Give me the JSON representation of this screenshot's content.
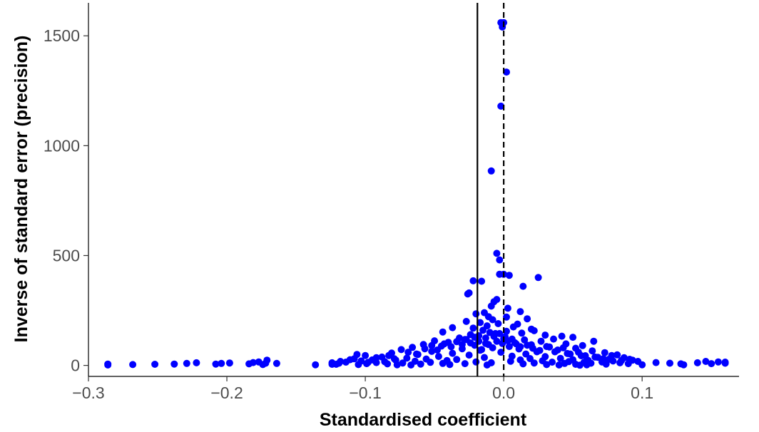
{
  "chart_data": {
    "type": "scatter",
    "title": "",
    "xlabel": "Standardised coefficient",
    "ylabel": "Inverse of standard error (precision)",
    "xlim": [
      -0.3,
      0.17
    ],
    "ylim": [
      -50,
      1650
    ],
    "x_ticks": [
      -0.3,
      -0.2,
      -0.1,
      0.0,
      0.1
    ],
    "x_tick_labels": [
      "−0.3",
      "−0.2",
      "−0.1",
      "0.0",
      "0.1"
    ],
    "y_ticks": [
      0,
      500,
      1000,
      1500
    ],
    "y_tick_labels": [
      "0",
      "500",
      "1000",
      "1500"
    ],
    "grid": false,
    "point_color": "#0000ff",
    "reference_lines": [
      {
        "x": -0.019,
        "style": "solid",
        "color": "#000000"
      },
      {
        "x": 0.0,
        "style": "dashed",
        "color": "#000000"
      }
    ],
    "points": [
      [
        0.0,
        1560
      ],
      [
        -0.002,
        1560
      ],
      [
        -0.001,
        1540
      ],
      [
        0.002,
        1335
      ],
      [
        -0.002,
        1180
      ],
      [
        -0.009,
        885
      ],
      [
        -0.005,
        510
      ],
      [
        -0.003,
        480
      ],
      [
        -0.003,
        415
      ],
      [
        0.0,
        415
      ],
      [
        0.004,
        410
      ],
      [
        0.025,
        400
      ],
      [
        -0.022,
        385
      ],
      [
        -0.016,
        383
      ],
      [
        0.014,
        360
      ],
      [
        -0.025,
        330
      ],
      [
        -0.026,
        325
      ],
      [
        -0.005,
        300
      ],
      [
        -0.007,
        290
      ],
      [
        -0.009,
        270
      ],
      [
        0.003,
        260
      ],
      [
        -0.014,
        240
      ],
      [
        0.012,
        245
      ],
      [
        -0.02,
        235
      ],
      [
        -0.011,
        222
      ],
      [
        0.002,
        220
      ],
      [
        0.017,
        212
      ],
      [
        -0.008,
        208
      ],
      [
        -0.027,
        200
      ],
      [
        -0.017,
        195
      ],
      [
        -0.004,
        190
      ],
      [
        0.01,
        188
      ],
      [
        -0.012,
        180
      ],
      [
        0.007,
        175
      ],
      [
        -0.037,
        172
      ],
      [
        -0.022,
        170
      ],
      [
        0.02,
        165
      ],
      [
        -0.015,
        160
      ],
      [
        0.022,
        158
      ],
      [
        0.002,
        155
      ],
      [
        -0.044,
        152
      ],
      [
        -0.01,
        150
      ],
      [
        0.013,
        147
      ],
      [
        -0.006,
        145
      ],
      [
        -0.024,
        140
      ],
      [
        0.03,
        138
      ],
      [
        -0.018,
        135
      ],
      [
        0.042,
        133
      ],
      [
        0.05,
        128
      ],
      [
        -0.032,
        125
      ],
      [
        0.0,
        122
      ],
      [
        0.036,
        120
      ],
      [
        -0.028,
        118
      ],
      [
        0.015,
        116
      ],
      [
        -0.05,
        112
      ],
      [
        0.027,
        110
      ],
      [
        0.065,
        110
      ],
      [
        -0.04,
        105
      ],
      [
        0.008,
        103
      ],
      [
        -0.013,
        100
      ],
      [
        0.045,
        98
      ],
      [
        -0.058,
        95
      ],
      [
        0.02,
        94
      ],
      [
        -0.021,
        92
      ],
      [
        0.057,
        90
      ],
      [
        -0.045,
        88
      ],
      [
        0.004,
        86
      ],
      [
        0.033,
        84
      ],
      [
        -0.066,
        82
      ],
      [
        -0.008,
        80
      ],
      [
        0.052,
        78
      ],
      [
        -0.03,
        76
      ],
      [
        0.011,
        75
      ],
      [
        -0.074,
        72
      ],
      [
        0.039,
        70
      ],
      [
        -0.017,
        69
      ],
      [
        0.064,
        66
      ],
      [
        -0.052,
        64
      ],
      [
        0.024,
        62
      ],
      [
        -0.002,
        60
      ],
      [
        0.073,
        58
      ],
      [
        -0.081,
        56
      ],
      [
        -0.037,
        55
      ],
      [
        0.046,
        54
      ],
      [
        0.016,
        52
      ],
      [
        -0.062,
        50
      ],
      [
        0.082,
        48
      ],
      [
        -0.025,
        47
      ],
      [
        -0.1,
        45
      ],
      [
        0.056,
        44
      ],
      [
        0.006,
        42
      ],
      [
        -0.047,
        41
      ],
      [
        0.03,
        40
      ],
      [
        -0.088,
        38
      ],
      [
        0.068,
        37
      ],
      [
        -0.014,
        36
      ],
      [
        0.087,
        35
      ],
      [
        -0.07,
        33
      ],
      [
        0.041,
        32
      ],
      [
        0.019,
        31
      ],
      [
        -0.108,
        30
      ],
      [
        -0.056,
        29
      ],
      [
        0.076,
        28
      ],
      [
        -0.034,
        27
      ],
      [
        0.05,
        26
      ],
      [
        -0.095,
        25
      ],
      [
        0.012,
        25
      ],
      [
        -0.078,
        24
      ],
      [
        0.093,
        24
      ],
      [
        0.061,
        23
      ],
      [
        -0.041,
        22
      ],
      [
        0.028,
        21
      ],
      [
        -0.103,
        20
      ],
      [
        0.079,
        20
      ],
      [
        -0.064,
        19
      ],
      [
        0.005,
        19
      ],
      [
        0.097,
        18
      ],
      [
        -0.086,
        17
      ],
      [
        0.047,
        17
      ],
      [
        -0.02,
        16
      ],
      [
        0.071,
        16
      ],
      [
        -0.114,
        15
      ],
      [
        0.035,
        15
      ],
      [
        -0.053,
        14
      ],
      [
        0.058,
        14
      ],
      [
        -0.092,
        13
      ],
      [
        0.11,
        13
      ],
      [
        -0.009,
        12
      ],
      [
        0.084,
        12
      ],
      [
        -0.073,
        11
      ],
      [
        0.022,
        11
      ],
      [
        -0.119,
        10
      ],
      [
        0.063,
        10
      ],
      [
        -0.044,
        9
      ],
      [
        0.044,
        9
      ],
      [
        -0.099,
        8
      ],
      [
        0.09,
        8
      ],
      [
        -0.028,
        8
      ],
      [
        0.128,
        7
      ],
      [
        -0.084,
        7
      ],
      [
        0.014,
        7
      ],
      [
        -0.06,
        6
      ],
      [
        0.074,
        6
      ],
      [
        -0.124,
        5
      ],
      [
        0.052,
        5
      ],
      [
        -0.105,
        4
      ],
      [
        0.031,
        4
      ],
      [
        -0.039,
        4
      ],
      [
        0.1,
        3
      ],
      [
        -0.077,
        3
      ],
      [
        0.06,
        3
      ],
      [
        0.13,
        3
      ],
      [
        -0.067,
        2
      ],
      [
        0.04,
        2
      ],
      [
        -0.012,
        2
      ],
      [
        0.055,
        1
      ],
      [
        0.146,
        18
      ],
      [
        0.155,
        16
      ],
      [
        0.16,
        15
      ],
      [
        0.16,
        10
      ],
      [
        0.15,
        8
      ],
      [
        0.14,
        12
      ],
      [
        0.12,
        10
      ],
      [
        -0.286,
        2
      ],
      [
        -0.286,
        6
      ],
      [
        -0.268,
        4
      ],
      [
        -0.252,
        5
      ],
      [
        -0.238,
        6
      ],
      [
        -0.229,
        9
      ],
      [
        -0.222,
        12
      ],
      [
        -0.208,
        6
      ],
      [
        -0.204,
        9
      ],
      [
        -0.198,
        11
      ],
      [
        -0.184,
        7
      ],
      [
        -0.181,
        13
      ],
      [
        -0.177,
        16
      ],
      [
        -0.174,
        4
      ],
      [
        -0.172,
        10
      ],
      [
        -0.171,
        24
      ],
      [
        -0.164,
        9
      ],
      [
        -0.136,
        3
      ],
      [
        -0.124,
        12
      ],
      [
        -0.121,
        5
      ],
      [
        -0.118,
        18
      ],
      [
        -0.111,
        26
      ],
      [
        -0.106,
        50
      ],
      [
        -0.098,
        14
      ],
      [
        -0.092,
        35
      ],
      [
        -0.083,
        45
      ],
      [
        -0.079,
        30
      ],
      [
        -0.069,
        60
      ],
      [
        -0.063,
        52
      ],
      [
        -0.057,
        76
      ],
      [
        -0.052,
        90
      ],
      [
        -0.048,
        70
      ],
      [
        -0.043,
        98
      ],
      [
        -0.038,
        85
      ],
      [
        -0.034,
        108
      ],
      [
        -0.03,
        95
      ],
      [
        -0.027,
        118
      ],
      [
        -0.024,
        102
      ],
      [
        -0.021,
        128
      ],
      [
        -0.018,
        110
      ],
      [
        -0.016,
        72
      ],
      [
        -0.013,
        125
      ],
      [
        -0.011,
        95
      ],
      [
        -0.007,
        132
      ],
      [
        -0.005,
        110
      ],
      [
        -0.003,
        145
      ],
      [
        -0.001,
        100
      ],
      [
        0.001,
        130
      ],
      [
        0.003,
        112
      ],
      [
        0.006,
        120
      ],
      [
        0.009,
        98
      ],
      [
        0.012,
        85
      ],
      [
        0.017,
        92
      ],
      [
        0.021,
        78
      ],
      [
        0.026,
        68
      ],
      [
        0.031,
        86
      ],
      [
        0.037,
        62
      ],
      [
        0.043,
        80
      ],
      [
        0.048,
        52
      ],
      [
        0.054,
        60
      ],
      [
        0.059,
        44
      ],
      [
        0.066,
        38
      ],
      [
        0.072,
        30
      ],
      [
        0.078,
        45
      ],
      [
        0.085,
        22
      ],
      [
        0.091,
        28
      ]
    ]
  }
}
